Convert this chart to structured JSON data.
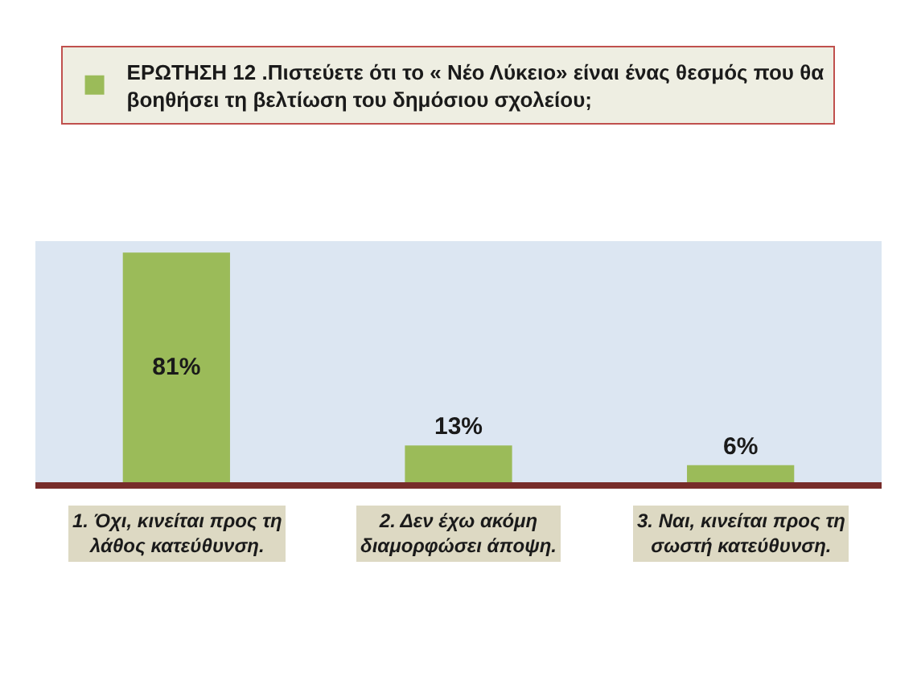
{
  "chart_data": {
    "type": "bar",
    "categories": [
      "1. Όχι, κινείται προς τη λάθος κατεύθυνση.",
      "2. Δεν έχω ακόμη διαμορφώσει άποψη.",
      "3. Ναι, κινείται προς τη σωστή κατεύθυνση."
    ],
    "series": [
      {
        "name": "ΕΡΩΤΗΣΗ 12 .Πιστεύετε ότι το « Νέο Λύκειο» είναι ένας θεσμός που θα βοηθήσει τη βελτίωση του δημόσιου σχολείου;",
        "color": "#9bbb59",
        "values": [
          81,
          13,
          6
        ],
        "value_labels": [
          "81%",
          "13%",
          "6%"
        ]
      }
    ],
    "legend": "top",
    "grid": false
  }
}
